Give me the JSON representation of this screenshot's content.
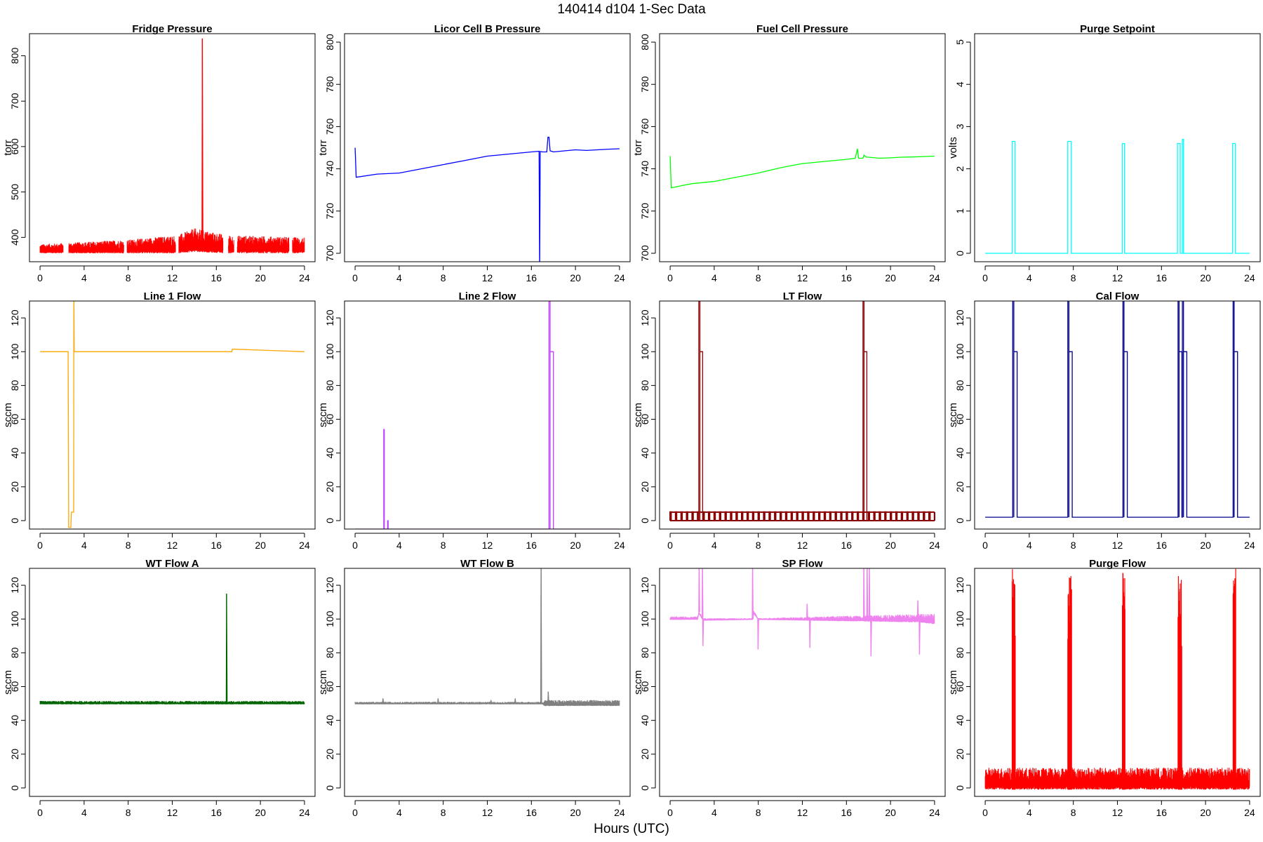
{
  "figure": {
    "title": "140414   d104   1-Sec Data",
    "xlabel": "Hours (UTC)"
  },
  "chart_data": [
    {
      "type": "line",
      "title": "Fridge Pressure",
      "ylabel": "torr",
      "color": "#ff0000",
      "xlim": [
        0,
        24
      ],
      "ylim": [
        365,
        830
      ],
      "xticks": [
        0,
        4,
        8,
        12,
        16,
        20,
        24
      ],
      "yticks": [
        400,
        500,
        600,
        700,
        800
      ],
      "style": "noise",
      "series": [
        {
          "band": [
            [
              0,
              365,
              385
            ],
            [
              8,
              365,
              395
            ],
            [
              12.5,
              365,
              405
            ],
            [
              14,
              368,
              420
            ],
            [
              17,
              365,
              405
            ],
            [
              24,
              365,
              400
            ]
          ],
          "spikes": [
            [
              14.7,
              838
            ]
          ],
          "gaps": [
            [
              2.1,
              2.6
            ],
            [
              7.6,
              7.9
            ],
            [
              12.3,
              12.6
            ],
            [
              16.6,
              17.1
            ],
            [
              17.6,
              17.9
            ],
            [
              22.6,
              22.9
            ]
          ]
        }
      ]
    },
    {
      "type": "line",
      "title": "Licor Cell B Pressure",
      "ylabel": "torr",
      "color": "#0000ff",
      "xlim": [
        0,
        24
      ],
      "ylim": [
        700,
        800
      ],
      "xticks": [
        0,
        4,
        8,
        12,
        16,
        20,
        24
      ],
      "yticks": [
        700,
        720,
        740,
        760,
        780,
        800
      ],
      "style": "line",
      "series": [
        {
          "x": [
            0,
            0.1,
            2,
            4,
            6,
            8,
            10,
            12,
            14,
            16,
            16.7,
            16.75,
            16.8,
            17,
            17.4,
            17.5,
            17.6,
            17.7,
            17.9,
            18,
            19,
            20,
            21,
            22,
            23,
            24
          ],
          "y": [
            750,
            736,
            737.5,
            738,
            740,
            742,
            744,
            746,
            747,
            748,
            748.3,
            690,
            748.2,
            748,
            748,
            755,
            755,
            748.5,
            748.2,
            748,
            748.5,
            749,
            748.7,
            749,
            749.3,
            749.5
          ]
        }
      ]
    },
    {
      "type": "line",
      "title": "Fuel Cell Pressure",
      "ylabel": "torr",
      "color": "#00ff00",
      "xlim": [
        0,
        24
      ],
      "ylim": [
        700,
        800
      ],
      "xticks": [
        0,
        4,
        8,
        12,
        16,
        20,
        24
      ],
      "yticks": [
        700,
        720,
        740,
        760,
        780,
        800
      ],
      "style": "line",
      "series": [
        {
          "x": [
            0,
            0.1,
            1,
            2,
            3,
            4,
            5,
            6,
            8,
            10,
            12,
            14,
            16,
            16.8,
            17,
            17.1,
            17.5,
            17.6,
            17.8,
            18,
            19,
            20,
            21,
            22,
            23,
            24
          ],
          "y": [
            746,
            731,
            732,
            733,
            733.5,
            734,
            735,
            736,
            738,
            740.5,
            742.5,
            743.5,
            744.5,
            745,
            749.5,
            745,
            745,
            746.5,
            745.5,
            745.5,
            745,
            745.2,
            745.5,
            745.6,
            745.8,
            746
          ]
        }
      ]
    },
    {
      "type": "line",
      "title": "Purge Setpoint",
      "ylabel": "volts",
      "color": "#00ffff",
      "xlim": [
        0,
        24
      ],
      "ylim": [
        0,
        5
      ],
      "xticks": [
        0,
        4,
        8,
        12,
        16,
        20,
        24
      ],
      "yticks": [
        0,
        1,
        2,
        3,
        4,
        5
      ],
      "style": "pulse",
      "series": [
        {
          "base": 0,
          "pulses": [
            [
              2.45,
              2.7,
              2.65
            ],
            [
              7.5,
              7.8,
              2.65
            ],
            [
              12.45,
              12.65,
              2.6
            ],
            [
              17.45,
              17.7,
              2.6
            ],
            [
              17.9,
              18,
              2.7
            ],
            [
              22.45,
              22.7,
              2.6
            ]
          ]
        }
      ]
    },
    {
      "type": "line",
      "title": "Line 1 Flow",
      "ylabel": "sccm",
      "color": "#ffa500",
      "xlim": [
        0,
        24
      ],
      "ylim": [
        0,
        125
      ],
      "xticks": [
        0,
        4,
        8,
        12,
        16,
        20,
        24
      ],
      "yticks": [
        0,
        20,
        40,
        60,
        80,
        100,
        120
      ],
      "style": "line",
      "series": [
        {
          "x": [
            0,
            2.55,
            2.6,
            2.8,
            2.85,
            3.05,
            3.07,
            3.1,
            17,
            17.4,
            17.45,
            24
          ],
          "y": [
            100,
            100,
            -4,
            -4,
            5,
            5,
            135,
            100,
            100,
            100,
            101.5,
            100
          ]
        }
      ]
    },
    {
      "type": "line",
      "title": "Line 2 Flow",
      "ylabel": "sccm",
      "color": "#bf3eff",
      "xlim": [
        0,
        24
      ],
      "ylim": [
        0,
        125
      ],
      "xticks": [
        0,
        4,
        8,
        12,
        16,
        20,
        24
      ],
      "yticks": [
        0,
        20,
        40,
        60,
        80,
        100,
        120
      ],
      "style": "pulse",
      "series": [
        {
          "base": -5,
          "pulses": [
            [
              2.6,
              2.65,
              54
            ],
            [
              2.95,
              3.0,
              0
            ],
            [
              17.6,
              17.7,
              135
            ],
            [
              17.7,
              18.0,
              100
            ]
          ]
        }
      ]
    },
    {
      "type": "line",
      "title": "LT Flow",
      "ylabel": "sccm",
      "color": "#8b0000",
      "xlim": [
        0,
        24
      ],
      "ylim": [
        0,
        125
      ],
      "xticks": [
        0,
        4,
        8,
        12,
        16,
        20,
        24
      ],
      "yticks": [
        0,
        20,
        40,
        60,
        80,
        100,
        120
      ],
      "style": "sawtooth",
      "series": [
        {
          "band_low": 0,
          "band_high": 5,
          "period": 0.5,
          "pulses": [
            [
              2.6,
              2.7,
              135
            ],
            [
              2.7,
              2.95,
              100
            ],
            [
              17.5,
              17.6,
              135
            ],
            [
              17.6,
              17.85,
              100
            ]
          ]
        }
      ]
    },
    {
      "type": "line",
      "title": "Cal Flow",
      "ylabel": "sccm",
      "color": "#00008b",
      "xlim": [
        0,
        24
      ],
      "ylim": [
        0,
        125
      ],
      "xticks": [
        0,
        4,
        8,
        12,
        16,
        20,
        24
      ],
      "yticks": [
        0,
        20,
        40,
        60,
        80,
        100,
        120
      ],
      "style": "pulse",
      "series": [
        {
          "base": 2,
          "pulses": [
            [
              2.5,
              2.6,
              135
            ],
            [
              2.6,
              2.9,
              100
            ],
            [
              7.5,
              7.6,
              135
            ],
            [
              7.6,
              7.9,
              100
            ],
            [
              12.5,
              12.6,
              135
            ],
            [
              12.6,
              12.9,
              100
            ],
            [
              17.5,
              17.6,
              135
            ],
            [
              17.6,
              17.85,
              100
            ],
            [
              17.9,
              18.0,
              135
            ],
            [
              18.0,
              18.3,
              100
            ],
            [
              22.5,
              22.6,
              135
            ],
            [
              22.6,
              22.9,
              100
            ]
          ]
        }
      ]
    },
    {
      "type": "line",
      "title": "WT Flow A",
      "ylabel": "sccm",
      "color": "#006400",
      "xlim": [
        0,
        24
      ],
      "ylim": [
        0,
        125
      ],
      "xticks": [
        0,
        4,
        8,
        12,
        16,
        20,
        24
      ],
      "yticks": [
        0,
        20,
        40,
        60,
        80,
        100,
        120
      ],
      "style": "noise",
      "series": [
        {
          "band": [
            [
              0,
              49.5,
              51.5
            ],
            [
              24,
              49.5,
              51.5
            ]
          ],
          "spikes": [
            [
              16.9,
              115
            ]
          ],
          "gaps": []
        }
      ]
    },
    {
      "type": "line",
      "title": "WT Flow B",
      "ylabel": "sccm",
      "color": "#808080",
      "xlim": [
        0,
        24
      ],
      "ylim": [
        0,
        125
      ],
      "xticks": [
        0,
        4,
        8,
        12,
        16,
        20,
        24
      ],
      "yticks": [
        0,
        20,
        40,
        60,
        80,
        100,
        120
      ],
      "style": "noise",
      "series": [
        {
          "band": [
            [
              0,
              49.5,
              51
            ],
            [
              17,
              49.5,
              51
            ],
            [
              17.2,
              48.5,
              52
            ],
            [
              24,
              48.5,
              52
            ]
          ],
          "spikes": [
            [
              16.85,
              135
            ],
            [
              17.5,
              57
            ],
            [
              2.5,
              53
            ],
            [
              7.5,
              53
            ],
            [
              12.3,
              52
            ],
            [
              14.5,
              53
            ]
          ],
          "gaps": []
        }
      ]
    },
    {
      "type": "line",
      "title": "SP Flow",
      "ylabel": "sccm",
      "color": "#ee82ee",
      "xlim": [
        0,
        24
      ],
      "ylim": [
        0,
        125
      ],
      "xticks": [
        0,
        4,
        8,
        12,
        16,
        20,
        24
      ],
      "yticks": [
        0,
        20,
        40,
        60,
        80,
        100,
        120
      ],
      "style": "noise",
      "series": [
        {
          "band": [
            [
              0,
              99.5,
              101.5
            ],
            [
              2.5,
              99.5,
              101.5
            ],
            [
              2.6,
              103,
              105
            ],
            [
              3.0,
              99,
              100.5
            ],
            [
              7.5,
              99.5,
              100.5
            ],
            [
              7.6,
              103,
              105
            ],
            [
              8,
              99.5,
              100.5
            ],
            [
              22.5,
              98,
              103
            ],
            [
              24,
              97,
              103
            ]
          ],
          "spikes": [
            [
              2.6,
              135
            ],
            [
              2.9,
              135
            ],
            [
              2.95,
              84
            ],
            [
              7.45,
              135
            ],
            [
              7.95,
              82
            ],
            [
              12.4,
              109
            ],
            [
              12.65,
              83
            ],
            [
              17.55,
              135
            ],
            [
              17.85,
              135
            ],
            [
              18.05,
              135
            ],
            [
              18.2,
              78
            ],
            [
              22.45,
              111
            ],
            [
              22.6,
              79
            ]
          ],
          "gaps": []
        }
      ]
    },
    {
      "type": "line",
      "title": "Purge Flow",
      "ylabel": "sccm",
      "color": "#ff0000",
      "xlim": [
        0,
        24
      ],
      "ylim": [
        0,
        125
      ],
      "xticks": [
        0,
        4,
        8,
        12,
        16,
        20,
        24
      ],
      "yticks": [
        0,
        20,
        40,
        60,
        80,
        100,
        120
      ],
      "style": "noise",
      "series": [
        {
          "band": [
            [
              0,
              -1,
              12
            ],
            [
              24,
              -1,
              12
            ]
          ],
          "spikes": [],
          "gaps": [],
          "blocks": [
            [
              2.45,
              2.75,
              80,
              130
            ],
            [
              7.5,
              7.85,
              80,
              128
            ],
            [
              12.45,
              12.7,
              95,
              130
            ],
            [
              17.5,
              17.85,
              83,
              128
            ],
            [
              22.5,
              22.75,
              95,
              130
            ]
          ]
        }
      ]
    }
  ]
}
